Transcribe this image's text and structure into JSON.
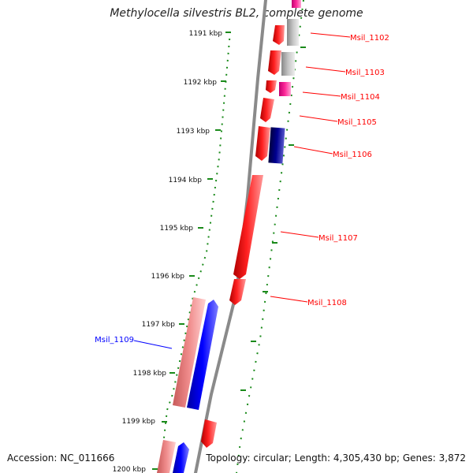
{
  "title": "Methylocella silvestris BL2, complete genome",
  "footer": {
    "accession": "Accession: NC_011666",
    "topology": "Topology: circular; Length: 4,305,430 bp; Genes: 3,872"
  },
  "colors": {
    "backbone": "#8a8a8a",
    "ruler": "#1a8a1a",
    "gene_red": "#ff0000",
    "gene_grey": "#b8b8b8",
    "gene_magenta": "#ff1493",
    "gene_navy": "#000080",
    "gene_pink": "#f08a8a",
    "gene_blue": "#0000ff",
    "label_red": "#ff0000",
    "label_blue": "#0000ff"
  },
  "ruler_labels": [
    "1191 kbp",
    "1192 kbp",
    "1193 kbp",
    "1194 kbp",
    "1195 kbp",
    "1196 kbp",
    "1197 kbp",
    "1198 kbp",
    "1199 kbp",
    "1200 kbp"
  ],
  "gene_labels": [
    {
      "text": "Msil_1102",
      "color": "red"
    },
    {
      "text": "Msil_1103",
      "color": "red"
    },
    {
      "text": "Msil_1104",
      "color": "red"
    },
    {
      "text": "Msil_1105",
      "color": "red"
    },
    {
      "text": "Msil_1106",
      "color": "red"
    },
    {
      "text": "Msil_1107",
      "color": "red"
    },
    {
      "text": "Msil_1108",
      "color": "red"
    },
    {
      "text": "Msil_1109",
      "color": "blue"
    }
  ]
}
